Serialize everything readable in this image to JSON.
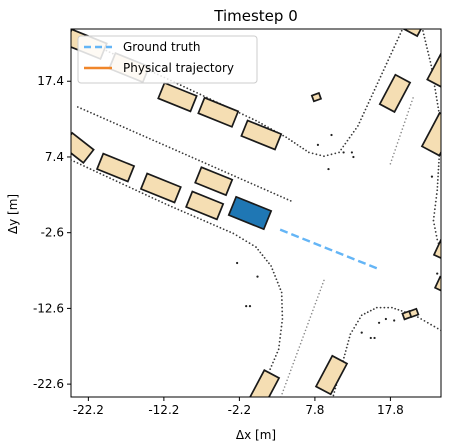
{
  "chart_data": {
    "type": "scatter",
    "title": "Timestep 0",
    "xlabel": "Δx [m]",
    "ylabel": "Δy [m]",
    "xlim": [
      -24.5,
      24.5
    ],
    "ylim": [
      -24.3,
      24.3
    ],
    "xticks": [
      -22.2,
      -12.2,
      -2.2,
      7.8,
      17.8
    ],
    "yticks": [
      17.4,
      7.4,
      -2.6,
      -12.6,
      -22.6
    ],
    "xtick_labels": [
      "-22.2",
      "-12.2",
      "-2.2",
      "7.8",
      "17.8"
    ],
    "ytick_labels": [
      "17.4",
      "7.4",
      "-2.6",
      "-12.6",
      "-22.6"
    ],
    "grid": false,
    "legend": {
      "placement": "top-left",
      "entries": [
        {
          "label": "Ground truth",
          "color": "#64b5f6",
          "style": "dashed"
        },
        {
          "label": "Physical trajectory",
          "color": "#f0862a",
          "style": "solid"
        }
      ]
    },
    "ground_truth": [
      [
        3.2,
        -2.2
      ],
      [
        16.0,
        -7.3
      ]
    ],
    "ego_vehicle": {
      "center": [
        -0.8,
        0.0
      ],
      "length": 5.0,
      "width": 2.6,
      "heading_deg": -22,
      "color": "#1f77b4"
    },
    "vehicles": {
      "color": "#f5deb3",
      "boxes": [
        {
          "center": [
            -22.5,
            22.3
          ],
          "length": 5.0,
          "width": 2.2,
          "heading_deg": -22
        },
        {
          "center": [
            -16.8,
            19.2
          ],
          "length": 4.8,
          "width": 2.2,
          "heading_deg": -22
        },
        {
          "center": [
            -10.4,
            15.3
          ],
          "length": 4.6,
          "width": 2.2,
          "heading_deg": -22
        },
        {
          "center": [
            -5.0,
            13.3
          ],
          "length": 4.8,
          "width": 2.2,
          "heading_deg": -22
        },
        {
          "center": [
            0.7,
            10.3
          ],
          "length": 4.8,
          "width": 2.2,
          "heading_deg": -22
        },
        {
          "center": [
            -23.6,
            8.6
          ],
          "length": 3.6,
          "width": 2.2,
          "heading_deg": -38
        },
        {
          "center": [
            -18.6,
            6.0
          ],
          "length": 4.4,
          "width": 2.2,
          "heading_deg": -22
        },
        {
          "center": [
            -12.6,
            3.3
          ],
          "length": 4.8,
          "width": 2.2,
          "heading_deg": -22
        },
        {
          "center": [
            -5.6,
            4.2
          ],
          "length": 4.4,
          "width": 2.2,
          "heading_deg": -22
        },
        {
          "center": [
            -6.8,
            1.0
          ],
          "length": 4.4,
          "width": 2.2,
          "heading_deg": -22
        },
        {
          "center": [
            21.5,
            26.0
          ],
          "length": 4.8,
          "width": 2.2,
          "heading_deg": 62
        },
        {
          "center": [
            25.8,
            20.5
          ],
          "length": 8.0,
          "width": 2.8,
          "heading_deg": 62
        },
        {
          "center": [
            18.4,
            15.8
          ],
          "length": 4.4,
          "width": 2.2,
          "heading_deg": 62
        },
        {
          "center": [
            24.3,
            10.4
          ],
          "length": 5.0,
          "width": 2.6,
          "heading_deg": 62
        },
        {
          "center": [
            25.5,
            -4.0
          ],
          "length": 4.4,
          "width": 2.2,
          "heading_deg": 65
        },
        {
          "center": [
            24.6,
            -9.4
          ],
          "length": 1.6,
          "width": 1.2,
          "heading_deg": 65
        },
        {
          "center": [
            20.0,
            -13.5
          ],
          "length": 1.0,
          "width": 0.8,
          "heading_deg": 20
        },
        {
          "center": [
            20.9,
            -13.2
          ],
          "length": 1.0,
          "width": 0.8,
          "heading_deg": 20
        },
        {
          "center": [
            8.0,
            15.3
          ],
          "length": 1.0,
          "width": 0.8,
          "heading_deg": 20
        },
        {
          "center": [
            1.0,
            -23.3
          ],
          "length": 4.6,
          "width": 2.2,
          "heading_deg": 62
        },
        {
          "center": [
            -1.5,
            -28.4
          ],
          "length": 4.4,
          "width": 2.2,
          "heading_deg": 62
        },
        {
          "center": [
            10.0,
            -21.4
          ],
          "length": 4.6,
          "width": 2.2,
          "heading_deg": 62
        }
      ]
    },
    "road_boundaries": [
      {
        "style": "dense",
        "points": [
          [
            -23.6,
            14.0
          ],
          [
            4.6,
            1.6
          ]
        ]
      },
      {
        "style": "dense",
        "points": [
          [
            -24.5,
            23.6
          ],
          [
            -13.0,
            18.3
          ],
          [
            0.0,
            12.2
          ],
          [
            4.0,
            10.0
          ],
          [
            7.0,
            8.0
          ],
          [
            9.0,
            7.5
          ],
          [
            11.0,
            8.0
          ],
          [
            13.5,
            11.5
          ],
          [
            16.5,
            18.0
          ],
          [
            19.5,
            24.5
          ]
        ]
      },
      {
        "style": "dense",
        "points": [
          [
            -24.5,
            7.0
          ],
          [
            -12.0,
            1.2
          ],
          [
            -3.0,
            -2.7
          ],
          [
            0.0,
            -4.5
          ],
          [
            2.0,
            -7.0
          ],
          [
            3.4,
            -10.5
          ],
          [
            3.5,
            -14.0
          ],
          [
            3.0,
            -18.0
          ],
          [
            0.0,
            -25.0
          ]
        ]
      },
      {
        "style": "dense",
        "points": [
          [
            10.0,
            -25.0
          ],
          [
            11.4,
            -20.0
          ],
          [
            12.5,
            -16.0
          ],
          [
            14.0,
            -13.5
          ],
          [
            16.0,
            -12.5
          ],
          [
            18.0,
            -12.5
          ],
          [
            21.0,
            -13.5
          ],
          [
            24.5,
            -15.5
          ]
        ]
      },
      {
        "style": "dense",
        "points": [
          [
            22.0,
            24.5
          ],
          [
            23.2,
            19.5
          ],
          [
            24.2,
            13.5
          ],
          [
            24.3,
            8.0
          ],
          [
            24.0,
            3.0
          ],
          [
            23.5,
            -1.0
          ],
          [
            24.0,
            -3.5
          ],
          [
            24.5,
            -5.0
          ]
        ]
      },
      {
        "style": "sparse",
        "points": [
          [
            17.8,
            6.5
          ],
          [
            20.8,
            15.2
          ]
        ]
      },
      {
        "style": "sparse",
        "points": [
          [
            3.3,
            -24.3
          ],
          [
            9.0,
            -8.9
          ]
        ]
      }
    ],
    "scatter_points": [
      [
        8.2,
        9.0
      ],
      [
        10.0,
        10.3
      ],
      [
        11.6,
        8.0
      ],
      [
        12.7,
        8.0
      ],
      [
        9.6,
        5.8
      ],
      [
        12.9,
        7.4
      ],
      [
        -2.5,
        -6.6
      ],
      [
        0.2,
        -8.4
      ],
      [
        -1.3,
        -12.3
      ],
      [
        -0.8,
        -12.3
      ],
      [
        23.3,
        4.8
      ],
      [
        24.0,
        -8.0
      ],
      [
        14.0,
        -15.8
      ],
      [
        15.2,
        -16.5
      ],
      [
        15.7,
        -16.5
      ],
      [
        16.3,
        -14.5
      ],
      [
        17.2,
        -14.0
      ],
      [
        18.3,
        -14.2
      ]
    ]
  }
}
